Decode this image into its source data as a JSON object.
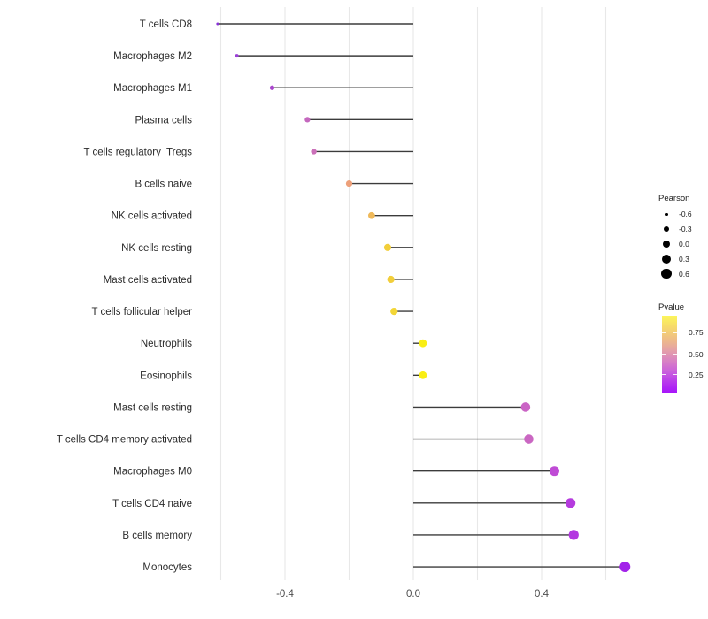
{
  "chart_data": {
    "type": "scatter",
    "subtype": "lollipop",
    "title": "",
    "xlabel": "",
    "ylabel": "",
    "xlim": [
      -0.7,
      0.78
    ],
    "grid": true,
    "gridline_values": [
      -0.6,
      -0.4,
      -0.2,
      0.0,
      0.2,
      0.4,
      0.6
    ],
    "x_ticks": [
      {
        "label": "-0.4",
        "value": -0.4
      },
      {
        "label": "0.0",
        "value": 0.0
      },
      {
        "label": "0.4",
        "value": 0.4
      }
    ],
    "points": [
      {
        "label": "T cells CD8",
        "pearson": -0.61,
        "color": "#8833d6"
      },
      {
        "label": "Macrophages M2",
        "pearson": -0.55,
        "color": "#9b3fd8"
      },
      {
        "label": "Macrophages M1",
        "pearson": -0.44,
        "color": "#a946cc"
      },
      {
        "label": "Plasma cells",
        "pearson": -0.33,
        "color": "#c468be"
      },
      {
        "label": "T cells regulatory  Tregs",
        "pearson": -0.31,
        "color": "#cb70b9"
      },
      {
        "label": "B cells naive",
        "pearson": -0.2,
        "color": "#eda07a"
      },
      {
        "label": "NK cells activated",
        "pearson": -0.13,
        "color": "#efb95a"
      },
      {
        "label": "NK cells resting",
        "pearson": -0.08,
        "color": "#f2ce3a"
      },
      {
        "label": "Mast cells activated",
        "pearson": -0.07,
        "color": "#f2ce3a"
      },
      {
        "label": "T cells follicular helper",
        "pearson": -0.06,
        "color": "#f3d636"
      },
      {
        "label": "Neutrophils",
        "pearson": 0.03,
        "color": "#f9ee15"
      },
      {
        "label": "Eosinophils",
        "pearson": 0.03,
        "color": "#f9ee15"
      },
      {
        "label": "Mast cells resting",
        "pearson": 0.35,
        "color": "#ca64c5"
      },
      {
        "label": "T cells CD4 memory activated",
        "pearson": 0.36,
        "color": "#ca67c2"
      },
      {
        "label": "Macrophages M0",
        "pearson": 0.44,
        "color": "#bf4bd5"
      },
      {
        "label": "T cells CD4 naive",
        "pearson": 0.49,
        "color": "#b53bde"
      },
      {
        "label": "B cells memory",
        "pearson": 0.5,
        "color": "#b338e0"
      },
      {
        "label": "Monocytes",
        "pearson": 0.66,
        "color": "#a222e9"
      }
    ],
    "legend_size": {
      "title": "Pearson",
      "items": [
        {
          "label": "-0.6",
          "value": -0.6
        },
        {
          "label": "-0.3",
          "value": -0.3
        },
        {
          "label": "0.0",
          "value": 0.0
        },
        {
          "label": "0.3",
          "value": 0.3
        },
        {
          "label": "0.6",
          "value": 0.6
        }
      ],
      "legend_position": "right"
    },
    "legend_color": {
      "title": "Pvalue",
      "ticks": [
        {
          "label": "0.75",
          "pos": 0.22
        },
        {
          "label": "0.50",
          "pos": 0.5
        },
        {
          "label": "0.25",
          "pos": 0.77
        }
      ],
      "gradient_stops": [
        {
          "color": "#fcf65a",
          "at": 0.0
        },
        {
          "color": "#f6d96c",
          "at": 0.15
        },
        {
          "color": "#efbe85",
          "at": 0.3
        },
        {
          "color": "#e4a0a8",
          "at": 0.45
        },
        {
          "color": "#d77fc6",
          "at": 0.6
        },
        {
          "color": "#c75adf",
          "at": 0.75
        },
        {
          "color": "#b32ef0",
          "at": 0.9
        },
        {
          "color": "#a716fa",
          "at": 1.0
        }
      ],
      "legend_position": "right"
    },
    "style_colors": {
      "background": "#ffffff",
      "gridline": "#e8e8e8",
      "stem": "#3c3c3c",
      "axis_text": "#4d4d4d",
      "label_text": "#2b2b2b"
    }
  }
}
